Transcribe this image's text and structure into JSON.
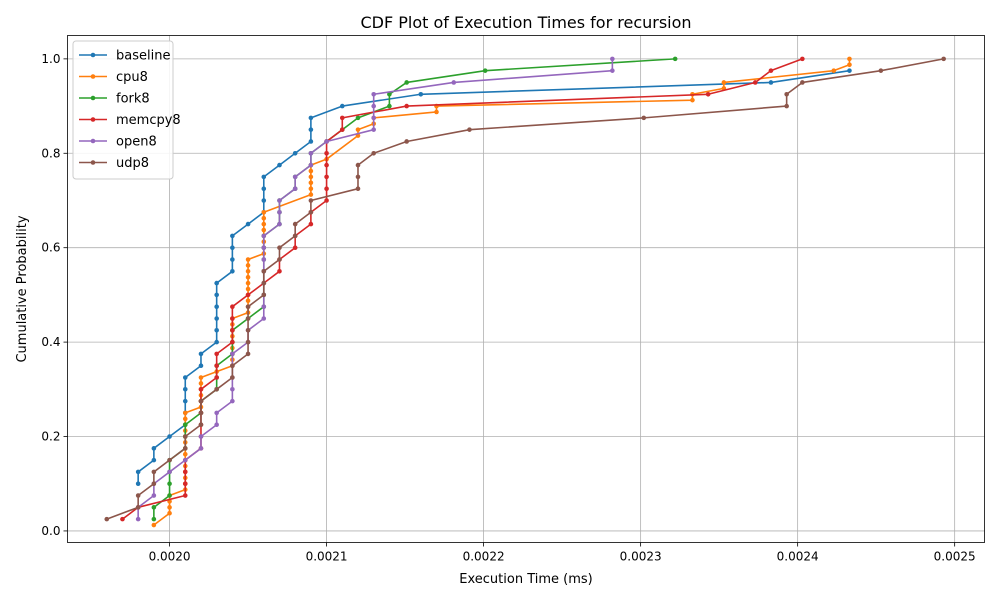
{
  "chart_data": {
    "type": "line",
    "title": "CDF Plot of Execution Times for recursion",
    "xlabel": "Execution Time (ms)",
    "ylabel": "Cumulative Probability",
    "xlim": [
      0.001935,
      0.002519
    ],
    "ylim": [
      -0.0245,
      1.0495
    ],
    "xticks": [
      0.002,
      0.0021,
      0.0022,
      0.0023,
      0.0024,
      0.0025
    ],
    "xtick_labels": [
      "0.0020",
      "0.0021",
      "0.0022",
      "0.0023",
      "0.0024",
      "0.0025"
    ],
    "yticks": [
      0.0,
      0.2,
      0.4,
      0.6,
      0.8,
      1.0
    ],
    "ytick_labels": [
      "0.0",
      "0.2",
      "0.4",
      "0.6",
      "0.8",
      "1.0"
    ],
    "grid": true,
    "legend_position": "top-left",
    "series": [
      {
        "name": "baseline",
        "color": "#1f77b4",
        "points": [
          [
            0.00198,
            0.1
          ],
          [
            0.00198,
            0.125
          ],
          [
            0.00199,
            0.15
          ],
          [
            0.00199,
            0.175
          ],
          [
            0.002,
            0.2
          ],
          [
            0.00201,
            0.225
          ],
          [
            0.00201,
            0.25
          ],
          [
            0.00201,
            0.275
          ],
          [
            0.00201,
            0.3
          ],
          [
            0.00201,
            0.325
          ],
          [
            0.00202,
            0.35
          ],
          [
            0.00202,
            0.375
          ],
          [
            0.00203,
            0.4
          ],
          [
            0.00203,
            0.425
          ],
          [
            0.00203,
            0.45
          ],
          [
            0.00203,
            0.475
          ],
          [
            0.00203,
            0.5
          ],
          [
            0.00203,
            0.525
          ],
          [
            0.00204,
            0.55
          ],
          [
            0.00204,
            0.575
          ],
          [
            0.00204,
            0.6
          ],
          [
            0.00204,
            0.625
          ],
          [
            0.00205,
            0.65
          ],
          [
            0.00206,
            0.675
          ],
          [
            0.00206,
            0.7
          ],
          [
            0.00206,
            0.725
          ],
          [
            0.00206,
            0.75
          ],
          [
            0.00207,
            0.775
          ],
          [
            0.00208,
            0.8
          ],
          [
            0.00209,
            0.825
          ],
          [
            0.00209,
            0.85
          ],
          [
            0.00209,
            0.875
          ],
          [
            0.00211,
            0.9
          ],
          [
            0.00216,
            0.925
          ],
          [
            0.002383,
            0.95
          ],
          [
            0.002433,
            0.975
          ]
        ]
      },
      {
        "name": "cpu8",
        "color": "#ff7f0e",
        "points": [
          [
            0.00199,
            0.0125
          ],
          [
            0.002,
            0.0375
          ],
          [
            0.002,
            0.05
          ],
          [
            0.002,
            0.0625
          ],
          [
            0.002,
            0.075
          ],
          [
            0.00201,
            0.0875
          ],
          [
            0.00201,
            0.1
          ],
          [
            0.00201,
            0.1125
          ],
          [
            0.00201,
            0.125
          ],
          [
            0.00201,
            0.1375
          ],
          [
            0.00201,
            0.15
          ],
          [
            0.00201,
            0.1625
          ],
          [
            0.00201,
            0.175
          ],
          [
            0.00201,
            0.1875
          ],
          [
            0.00201,
            0.2
          ],
          [
            0.00201,
            0.2125
          ],
          [
            0.00201,
            0.225
          ],
          [
            0.00201,
            0.2375
          ],
          [
            0.00201,
            0.25
          ],
          [
            0.00202,
            0.2625
          ],
          [
            0.00202,
            0.275
          ],
          [
            0.00202,
            0.2875
          ],
          [
            0.00202,
            0.3
          ],
          [
            0.00202,
            0.3125
          ],
          [
            0.00202,
            0.325
          ],
          [
            0.00203,
            0.3375
          ],
          [
            0.00204,
            0.35
          ],
          [
            0.00204,
            0.3625
          ],
          [
            0.00204,
            0.375
          ],
          [
            0.00204,
            0.3875
          ],
          [
            0.00204,
            0.4
          ],
          [
            0.00204,
            0.4125
          ],
          [
            0.00204,
            0.425
          ],
          [
            0.00204,
            0.4375
          ],
          [
            0.00204,
            0.45
          ],
          [
            0.00205,
            0.4625
          ],
          [
            0.00205,
            0.475
          ],
          [
            0.00205,
            0.4875
          ],
          [
            0.00205,
            0.5
          ],
          [
            0.00205,
            0.5125
          ],
          [
            0.00205,
            0.525
          ],
          [
            0.00205,
            0.5375
          ],
          [
            0.00205,
            0.55
          ],
          [
            0.00205,
            0.5625
          ],
          [
            0.00205,
            0.575
          ],
          [
            0.00206,
            0.5875
          ],
          [
            0.00206,
            0.6
          ],
          [
            0.00206,
            0.6125
          ],
          [
            0.00206,
            0.625
          ],
          [
            0.00206,
            0.6375
          ],
          [
            0.00206,
            0.65
          ],
          [
            0.00206,
            0.6625
          ],
          [
            0.00206,
            0.675
          ],
          [
            0.00209,
            0.7125
          ],
          [
            0.00209,
            0.725
          ],
          [
            0.00209,
            0.7375
          ],
          [
            0.00209,
            0.75
          ],
          [
            0.00209,
            0.7625
          ],
          [
            0.00209,
            0.775
          ],
          [
            0.0021,
            0.7875
          ],
          [
            0.00212,
            0.8375
          ],
          [
            0.00212,
            0.85
          ],
          [
            0.00213,
            0.8625
          ],
          [
            0.00213,
            0.875
          ],
          [
            0.00217,
            0.8875
          ],
          [
            0.00217,
            0.9
          ],
          [
            0.002333,
            0.9125
          ],
          [
            0.002333,
            0.925
          ],
          [
            0.002353,
            0.9375
          ],
          [
            0.002353,
            0.95
          ],
          [
            0.002423,
            0.975
          ],
          [
            0.002433,
            0.9875
          ],
          [
            0.002433,
            1.0
          ]
        ]
      },
      {
        "name": "fork8",
        "color": "#2ca02c",
        "points": [
          [
            0.00199,
            0.025
          ],
          [
            0.00199,
            0.05
          ],
          [
            0.002,
            0.075
          ],
          [
            0.002,
            0.1
          ],
          [
            0.002,
            0.125
          ],
          [
            0.002,
            0.15
          ],
          [
            0.00201,
            0.175
          ],
          [
            0.00201,
            0.2
          ],
          [
            0.00201,
            0.225
          ],
          [
            0.00202,
            0.25
          ],
          [
            0.00202,
            0.275
          ],
          [
            0.00203,
            0.3
          ],
          [
            0.00203,
            0.325
          ],
          [
            0.00203,
            0.35
          ],
          [
            0.00204,
            0.375
          ],
          [
            0.00204,
            0.4
          ],
          [
            0.00204,
            0.425
          ],
          [
            0.00205,
            0.45
          ],
          [
            0.00206,
            0.475
          ],
          [
            0.00206,
            0.5
          ],
          [
            0.00206,
            0.525
          ],
          [
            0.00206,
            0.55
          ],
          [
            0.00206,
            0.575
          ],
          [
            0.00206,
            0.6
          ],
          [
            0.00206,
            0.625
          ],
          [
            0.00207,
            0.65
          ],
          [
            0.00207,
            0.675
          ],
          [
            0.00207,
            0.7
          ],
          [
            0.00208,
            0.725
          ],
          [
            0.00208,
            0.75
          ],
          [
            0.00209,
            0.775
          ],
          [
            0.00209,
            0.8
          ],
          [
            0.0021,
            0.825
          ],
          [
            0.00211,
            0.85
          ],
          [
            0.00212,
            0.875
          ],
          [
            0.00214,
            0.9
          ],
          [
            0.00214,
            0.925
          ],
          [
            0.002151,
            0.95
          ],
          [
            0.002201,
            0.975
          ],
          [
            0.002322,
            1.0
          ]
        ]
      },
      {
        "name": "memcpy8",
        "color": "#d62728",
        "points": [
          [
            0.00197,
            0.025
          ],
          [
            0.00198,
            0.05
          ],
          [
            0.00201,
            0.075
          ],
          [
            0.00201,
            0.1
          ],
          [
            0.00201,
            0.125
          ],
          [
            0.00201,
            0.15
          ],
          [
            0.00202,
            0.175
          ],
          [
            0.00202,
            0.2
          ],
          [
            0.00202,
            0.225
          ],
          [
            0.00202,
            0.25
          ],
          [
            0.00202,
            0.275
          ],
          [
            0.00202,
            0.3
          ],
          [
            0.00203,
            0.325
          ],
          [
            0.00203,
            0.35
          ],
          [
            0.00203,
            0.375
          ],
          [
            0.00204,
            0.4
          ],
          [
            0.00204,
            0.425
          ],
          [
            0.00204,
            0.45
          ],
          [
            0.00204,
            0.475
          ],
          [
            0.00205,
            0.5
          ],
          [
            0.00206,
            0.525
          ],
          [
            0.00207,
            0.55
          ],
          [
            0.00207,
            0.575
          ],
          [
            0.00208,
            0.6
          ],
          [
            0.00208,
            0.625
          ],
          [
            0.00209,
            0.65
          ],
          [
            0.00209,
            0.675
          ],
          [
            0.0021,
            0.7
          ],
          [
            0.0021,
            0.725
          ],
          [
            0.0021,
            0.75
          ],
          [
            0.0021,
            0.775
          ],
          [
            0.0021,
            0.8
          ],
          [
            0.0021,
            0.825
          ],
          [
            0.00211,
            0.85
          ],
          [
            0.00211,
            0.875
          ],
          [
            0.002151,
            0.9
          ],
          [
            0.002343,
            0.925
          ],
          [
            0.002373,
            0.95
          ],
          [
            0.002383,
            0.975
          ],
          [
            0.002403,
            1.0
          ]
        ]
      },
      {
        "name": "open8",
        "color": "#9467bd",
        "points": [
          [
            0.00198,
            0.025
          ],
          [
            0.00198,
            0.05
          ],
          [
            0.00199,
            0.075
          ],
          [
            0.00199,
            0.1
          ],
          [
            0.002,
            0.125
          ],
          [
            0.00201,
            0.15
          ],
          [
            0.00202,
            0.175
          ],
          [
            0.00202,
            0.2
          ],
          [
            0.00203,
            0.225
          ],
          [
            0.00203,
            0.25
          ],
          [
            0.00204,
            0.275
          ],
          [
            0.00204,
            0.3
          ],
          [
            0.00204,
            0.325
          ],
          [
            0.00204,
            0.35
          ],
          [
            0.00204,
            0.375
          ],
          [
            0.00205,
            0.4
          ],
          [
            0.00205,
            0.425
          ],
          [
            0.00206,
            0.45
          ],
          [
            0.00206,
            0.475
          ],
          [
            0.00206,
            0.5
          ],
          [
            0.00206,
            0.525
          ],
          [
            0.00206,
            0.55
          ],
          [
            0.00206,
            0.575
          ],
          [
            0.00206,
            0.6
          ],
          [
            0.00206,
            0.625
          ],
          [
            0.00207,
            0.65
          ],
          [
            0.00207,
            0.675
          ],
          [
            0.00207,
            0.7
          ],
          [
            0.00208,
            0.725
          ],
          [
            0.00208,
            0.75
          ],
          [
            0.00209,
            0.775
          ],
          [
            0.00209,
            0.8
          ],
          [
            0.0021,
            0.825
          ],
          [
            0.00213,
            0.85
          ],
          [
            0.00213,
            0.875
          ],
          [
            0.00213,
            0.9
          ],
          [
            0.00213,
            0.925
          ],
          [
            0.002181,
            0.95
          ],
          [
            0.002282,
            0.975
          ],
          [
            0.002282,
            1.0
          ]
        ]
      },
      {
        "name": "udp8",
        "color": "#8c564b",
        "points": [
          [
            0.00196,
            0.025
          ],
          [
            0.00198,
            0.05
          ],
          [
            0.00198,
            0.075
          ],
          [
            0.00199,
            0.1
          ],
          [
            0.00199,
            0.125
          ],
          [
            0.002,
            0.15
          ],
          [
            0.00201,
            0.175
          ],
          [
            0.00201,
            0.2
          ],
          [
            0.00202,
            0.225
          ],
          [
            0.00202,
            0.25
          ],
          [
            0.00202,
            0.275
          ],
          [
            0.00203,
            0.3
          ],
          [
            0.00204,
            0.325
          ],
          [
            0.00204,
            0.35
          ],
          [
            0.00205,
            0.375
          ],
          [
            0.00205,
            0.4
          ],
          [
            0.00205,
            0.425
          ],
          [
            0.00205,
            0.45
          ],
          [
            0.00205,
            0.475
          ],
          [
            0.00206,
            0.5
          ],
          [
            0.00206,
            0.525
          ],
          [
            0.00206,
            0.55
          ],
          [
            0.00207,
            0.575
          ],
          [
            0.00207,
            0.6
          ],
          [
            0.00208,
            0.625
          ],
          [
            0.00208,
            0.65
          ],
          [
            0.00209,
            0.675
          ],
          [
            0.00209,
            0.7
          ],
          [
            0.00212,
            0.725
          ],
          [
            0.00212,
            0.75
          ],
          [
            0.00212,
            0.775
          ],
          [
            0.00213,
            0.8
          ],
          [
            0.002151,
            0.825
          ],
          [
            0.002191,
            0.85
          ],
          [
            0.002302,
            0.875
          ],
          [
            0.002393,
            0.9
          ],
          [
            0.002393,
            0.925
          ],
          [
            0.002403,
            0.95
          ],
          [
            0.002453,
            0.975
          ],
          [
            0.002493,
            1.0
          ]
        ]
      }
    ]
  }
}
